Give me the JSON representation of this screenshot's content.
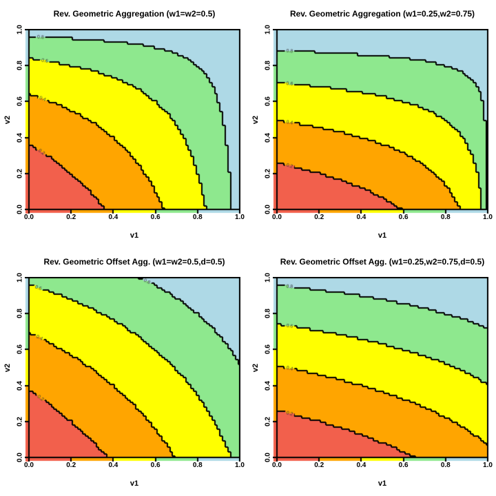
{
  "style": {
    "background": "#ffffff",
    "band_colors": [
      "#f2604c",
      "#ffa500",
      "#ffff00",
      "#8ee88e",
      "#aed9e6"
    ],
    "band_ranges": [
      [
        0.0,
        0.2
      ],
      [
        0.2,
        0.4
      ],
      [
        0.4,
        0.6
      ],
      [
        0.6,
        0.8
      ],
      [
        0.8,
        1.0
      ]
    ],
    "contour_line_color": "#000000",
    "contour_label_color": "#333333",
    "axis_strip_note": "thin color-key strips along left and bottom axes, colored by 0.2-wide value bands"
  },
  "axes": {
    "x_label": "v1",
    "y_label": "v2",
    "tick_labels": [
      "0.0",
      "0.2",
      "0.4",
      "0.6",
      "0.8",
      "1.0"
    ],
    "tick_values": [
      0,
      0.2,
      0.4,
      0.6,
      0.8,
      1
    ],
    "xlim": [
      0,
      1
    ],
    "ylim": [
      0,
      1
    ],
    "grid": false,
    "legend": "none"
  },
  "chart_data": [
    {
      "type": "filled_contour",
      "title": "Rev. Geometric Aggregation (w1=w2=0.5)",
      "xlabel": "v1",
      "ylabel": "v2",
      "xlim": [
        0,
        1
      ],
      "ylim": [
        0,
        1
      ],
      "levels": [
        0.2,
        0.4,
        0.6,
        0.8
      ],
      "function": {
        "name": "reverse_geometric",
        "formula": "u = 1 - (1-v1)^w1 * (1-v2)^w2",
        "params": {
          "w1": 0.5,
          "w2": 0.5
        }
      },
      "contour_labels": [
        {
          "text": "0.8",
          "x": 0.055,
          "y": 0.958,
          "angle": 4
        },
        {
          "text": "0.6",
          "x": 0.075,
          "y": 0.827,
          "angle": 10
        },
        {
          "text": "0.4",
          "x": 0.065,
          "y": 0.615,
          "angle": 21
        },
        {
          "text": "0.2",
          "x": 0.06,
          "y": 0.319,
          "angle": 38
        }
      ]
    },
    {
      "type": "filled_contour",
      "title": "Rev. Geometric Aggregation (w1=0.25,w2=0.75)",
      "xlabel": "v1",
      "ylabel": "v2",
      "xlim": [
        0,
        1
      ],
      "ylim": [
        0,
        1
      ],
      "levels": [
        0.2,
        0.4,
        0.6,
        0.8
      ],
      "function": {
        "name": "reverse_geometric",
        "formula": "u = 1 - (1-v1)^w1 * (1-v2)^w2",
        "params": {
          "w1": 0.25,
          "w2": 0.75
        }
      },
      "contour_labels": [
        {
          "text": "0.8",
          "x": 0.06,
          "y": 0.8805,
          "angle": 3
        },
        {
          "text": "0.6",
          "x": 0.06,
          "y": 0.699,
          "angle": 5
        },
        {
          "text": "0.4",
          "x": 0.06,
          "y": 0.4833,
          "angle": 9
        },
        {
          "text": "0.2",
          "x": 0.06,
          "y": 0.242,
          "angle": 14
        }
      ]
    },
    {
      "type": "filled_contour",
      "title": "Rev. Geometric Offset Agg. (w1=w2=0.5,d=0.5)",
      "xlabel": "v1",
      "ylabel": "v2",
      "xlim": [
        0,
        1
      ],
      "ylim": [
        0,
        1
      ],
      "levels": [
        0.2,
        0.4,
        0.6,
        0.8
      ],
      "function": {
        "name": "reverse_geometric_offset",
        "formula": "u = 1 - ((1+d-v1)^w1 * (1+d-v2)^w2 - d)",
        "params": {
          "w1": 0.5,
          "w2": 0.5,
          "d": 0.5
        }
      },
      "contour_labels": [
        {
          "text": "0.8",
          "x": 0.56,
          "y": 0.9787,
          "angle": 25
        },
        {
          "text": "0.6",
          "x": 0.045,
          "y": 0.943,
          "angle": 18
        },
        {
          "text": "0.4",
          "x": 0.05,
          "y": 0.6655,
          "angle": 27
        },
        {
          "text": "0.2",
          "x": 0.055,
          "y": 0.3304,
          "angle": 37
        }
      ]
    },
    {
      "type": "filled_contour",
      "title": "Rev. Geometric Offset Agg. (w1=0.25,w2=0.75,d=0.5)",
      "xlabel": "v1",
      "ylabel": "v2",
      "xlim": [
        0,
        1
      ],
      "ylim": [
        0,
        1
      ],
      "levels": [
        0.2,
        0.4,
        0.6,
        0.8
      ],
      "function": {
        "name": "reverse_geometric_offset",
        "formula": "u = 1 - ((1+d-v1)^w1 * (1+d-v2)^w2 - d)",
        "params": {
          "w1": 0.25,
          "w2": 0.75,
          "d": 0.5
        }
      },
      "contour_labels": [
        {
          "text": "0.8",
          "x": 0.06,
          "y": 0.9502,
          "angle": 6
        },
        {
          "text": "0.6",
          "x": 0.06,
          "y": 0.7308,
          "angle": 9
        },
        {
          "text": "0.4",
          "x": 0.06,
          "y": 0.4944,
          "angle": 12
        },
        {
          "text": "0.2",
          "x": 0.06,
          "y": 0.2435,
          "angle": 15
        }
      ]
    }
  ]
}
